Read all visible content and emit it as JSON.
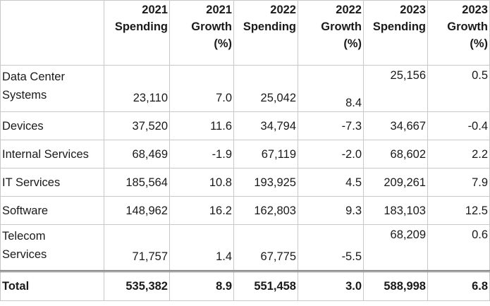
{
  "columns": [
    {
      "lines": [
        "2021",
        "Spending"
      ]
    },
    {
      "lines": [
        "2021",
        "Growth",
        "(%)"
      ]
    },
    {
      "lines": [
        "2022",
        "Spending"
      ]
    },
    {
      "lines": [
        "2022",
        "Growth",
        "(%)"
      ]
    },
    {
      "lines": [
        "2023",
        "Spending"
      ]
    },
    {
      "lines": [
        "2023",
        "Growth",
        "(%)"
      ]
    }
  ],
  "rows": [
    {
      "label": [
        "Data Center",
        "Systems"
      ],
      "values": [
        "23,110",
        "7.0",
        "25,042",
        "8.4",
        "25,156",
        "0.5"
      ]
    },
    {
      "label": [
        "Devices"
      ],
      "values": [
        "37,520",
        "11.6",
        "34,794",
        "-7.3",
        "34,667",
        "-0.4"
      ]
    },
    {
      "label": [
        "Internal Services"
      ],
      "values": [
        "68,469",
        "-1.9",
        "67,119",
        "-2.0",
        "68,602",
        "2.2"
      ]
    },
    {
      "label": [
        "IT Services"
      ],
      "values": [
        "185,564",
        "10.8",
        "193,925",
        "4.5",
        "209,261",
        "7.9"
      ]
    },
    {
      "label": [
        "Software"
      ],
      "values": [
        "148,962",
        "16.2",
        "162,803",
        "9.3",
        "183,103",
        "12.5"
      ]
    },
    {
      "label": [
        "Telecom",
        "Services"
      ],
      "values": [
        "71,757",
        "1.4",
        "67,775",
        "-5.5",
        "68,209",
        "0.6"
      ]
    }
  ],
  "total": {
    "label": "Total",
    "values": [
      "535,382",
      "8.9",
      "551,458",
      "3.0",
      "588,998",
      "6.8"
    ]
  }
}
